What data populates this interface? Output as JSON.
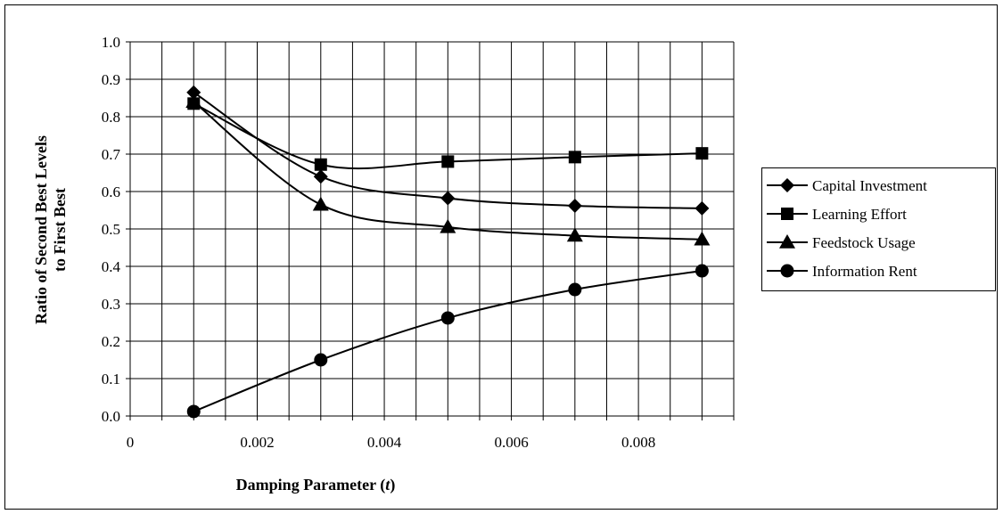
{
  "chart_data": {
    "type": "line",
    "xlabel": "Damping Parameter (",
    "xlabel_italic": "t",
    "xlabel_suffix": ")",
    "ylabel_line1": "Ratio of Second Best Levels",
    "ylabel_line2": "to First Best",
    "x_ticks": [
      0,
      0.002,
      0.004,
      0.006,
      0.008
    ],
    "x_tick_labels": [
      "0",
      "0.002",
      "0.004",
      "0.006",
      "0.008"
    ],
    "x_minor_step": 0.0005,
    "xlim": [
      0,
      0.0095
    ],
    "y_ticks": [
      0.0,
      0.1,
      0.2,
      0.3,
      0.4,
      0.5,
      0.6,
      0.7,
      0.8,
      0.9,
      1.0
    ],
    "y_tick_labels": [
      "0.0",
      "0.1",
      "0.2",
      "0.3",
      "0.4",
      "0.5",
      "0.6",
      "0.7",
      "0.8",
      "0.9",
      "1.0"
    ],
    "ylim": [
      0,
      1.0
    ],
    "grid": true,
    "smooth": true,
    "legend_position": "right",
    "series": [
      {
        "name": "Capital Investment",
        "marker": "diamond",
        "x": [
          0.001,
          0.003,
          0.005,
          0.007,
          0.009
        ],
        "y": [
          0.865,
          0.64,
          0.582,
          0.562,
          0.555
        ]
      },
      {
        "name": "Learning Effort",
        "marker": "square",
        "x": [
          0.001,
          0.003,
          0.005,
          0.007,
          0.009
        ],
        "y": [
          0.835,
          0.672,
          0.68,
          0.692,
          0.702
        ]
      },
      {
        "name": "Feedstock Usage",
        "marker": "triangle",
        "x": [
          0.001,
          0.003,
          0.005,
          0.007,
          0.009
        ],
        "y": [
          0.84,
          0.565,
          0.505,
          0.482,
          0.472
        ]
      },
      {
        "name": "Information Rent",
        "marker": "circle",
        "x": [
          0.001,
          0.003,
          0.005,
          0.007,
          0.009
        ],
        "y": [
          0.012,
          0.15,
          0.262,
          0.338,
          0.388
        ]
      }
    ]
  }
}
